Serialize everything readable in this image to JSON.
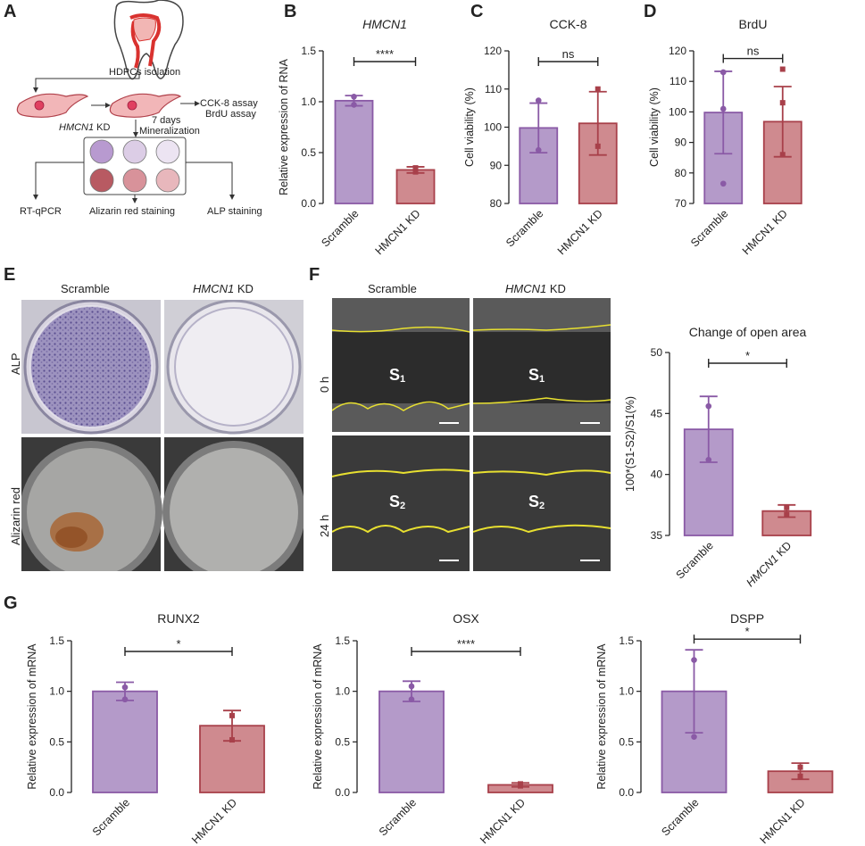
{
  "panels": {
    "A": "A",
    "B": "B",
    "C": "C",
    "D": "D",
    "E": "E",
    "F": "F",
    "G": "G"
  },
  "schematic": {
    "isolation": "HDPCs isolation",
    "kd_gene": "HMCN1",
    "kd_suffix": " KD",
    "days": "7 days",
    "mineralization": "Mineralization",
    "cck8": "CCK-8 assay",
    "brdu": "BrdU assay",
    "rtqpcr": "RT-qPCR",
    "alizarin": "Alizarin red staining",
    "alp": "ALP staining"
  },
  "panelE": {
    "col1": "Scramble",
    "col2_gene": "HMCN1",
    "col2_suffix": " KD",
    "row1": "ALP",
    "row2": "Alizarin red"
  },
  "panelF": {
    "col1": "Scramble",
    "col2_gene": "HMCN1",
    "col2_suffix": " KD",
    "row1": "0 h",
    "row2": "24 h",
    "s1": "S",
    "s1_sub": "1",
    "s2": "S",
    "s2_sub": "2"
  },
  "colors": {
    "purple_fill": "#b49ac9",
    "purple_edge": "#8a5aa6",
    "red_fill": "#cf8a8f",
    "red_edge": "#a8404a"
  },
  "chart_data": [
    {
      "id": "B",
      "type": "bar",
      "title": "HMCN1",
      "title_italic": true,
      "categories": [
        "Scramble",
        "HMCN1 KD"
      ],
      "values": [
        1.01,
        0.33
      ],
      "errors": [
        0.05,
        0.03
      ],
      "points": [
        [
          0.97,
          1.05
        ],
        [
          0.31,
          0.35
        ]
      ],
      "ylabel": "Relative expression of RNA",
      "ylim": [
        0,
        1.5
      ],
      "yticks": [
        0,
        0.5,
        1,
        1.5
      ],
      "yticklabels": [
        "0.0",
        "0.5",
        "1.0",
        "1.5"
      ],
      "sig": "****"
    },
    {
      "id": "C",
      "type": "bar",
      "title": "CCK-8",
      "title_italic": false,
      "categories": [
        "Scramble",
        "HMCN1 KD"
      ],
      "values": [
        99.8,
        101
      ],
      "errors": [
        6.5,
        8.3
      ],
      "points": [
        [
          94,
          107
        ],
        [
          95,
          110
        ]
      ],
      "ylabel": "Cell viability (%)",
      "ylim": [
        80,
        120
      ],
      "yticks": [
        80,
        90,
        100,
        110,
        120
      ],
      "yticklabels": [
        "80",
        "90",
        "100",
        "110",
        "120"
      ],
      "sig": "ns"
    },
    {
      "id": "D",
      "type": "bar",
      "title": "BrdU",
      "title_italic": false,
      "categories": [
        "Scramble",
        "HMCN1 KD"
      ],
      "values": [
        99.8,
        96.8
      ],
      "errors": [
        13.5,
        11.5
      ],
      "points": [
        [
          76.5,
          101,
          113
        ],
        [
          86,
          103,
          114
        ]
      ],
      "ylabel": "Cell viability (%)",
      "ylim": [
        70,
        120
      ],
      "yticks": [
        70,
        80,
        90,
        100,
        110,
        120
      ],
      "yticklabels": [
        "70",
        "80",
        "90",
        "100",
        "110",
        "120"
      ],
      "sig": "ns"
    },
    {
      "id": "F",
      "type": "bar",
      "title": "Change of open area",
      "title_italic": false,
      "categories": [
        "Scramble",
        "HMCN1 KD"
      ],
      "cat_italic_gene": true,
      "values": [
        43.7,
        37.0
      ],
      "errors": [
        2.7,
        0.5
      ],
      "points": [
        [
          41.2,
          45.6
        ],
        [
          36.7,
          37.3
        ]
      ],
      "ylabel": "100*(S1-S2)/S1(%)",
      "ylim": [
        35,
        50
      ],
      "yticks": [
        35,
        40,
        45,
        50
      ],
      "yticklabels": [
        "35",
        "40",
        "45",
        "50"
      ],
      "sig": "*"
    },
    {
      "id": "G1",
      "type": "bar",
      "title": "RUNX2",
      "title_italic": false,
      "categories": [
        "Scramble",
        "HMCN1 KD"
      ],
      "values": [
        1.0,
        0.66
      ],
      "errors": [
        0.09,
        0.15
      ],
      "points": [
        [
          0.92,
          1.04
        ],
        [
          0.52,
          0.76
        ]
      ],
      "ylabel": "Relative expression of mRNA",
      "ylim": [
        0,
        1.5
      ],
      "yticks": [
        0,
        0.5,
        1,
        1.5
      ],
      "yticklabels": [
        "0.0",
        "0.5",
        "1.0",
        "1.5"
      ],
      "sig": "*"
    },
    {
      "id": "G2",
      "type": "bar",
      "title": "OSX",
      "title_italic": false,
      "categories": [
        "Scramble",
        "HMCN1 KD"
      ],
      "values": [
        1.0,
        0.075
      ],
      "errors": [
        0.1,
        0.02
      ],
      "points": [
        [
          0.92,
          1.05
        ],
        [
          0.065,
          0.085
        ]
      ],
      "ylabel": "Relative expression of mRNA",
      "ylim": [
        0,
        1.5
      ],
      "yticks": [
        0,
        0.5,
        1,
        1.5
      ],
      "yticklabels": [
        "0.0",
        "0.5",
        "1.0",
        "1.5"
      ],
      "sig": "****"
    },
    {
      "id": "G3",
      "type": "bar",
      "title": "DSPP",
      "title_italic": false,
      "categories": [
        "Scramble",
        "HMCN1 KD"
      ],
      "values": [
        1.0,
        0.21
      ],
      "errors": [
        0.41,
        0.08
      ],
      "points": [
        [
          0.55,
          1.31
        ],
        [
          0.16,
          0.25
        ]
      ],
      "ylabel": "Relative expression of mRNA",
      "ylim": [
        0,
        1.5
      ],
      "yticks": [
        0,
        0.5,
        1,
        1.5
      ],
      "yticklabels": [
        "0.0",
        "0.5",
        "1.0",
        "1.5"
      ],
      "sig": "*"
    }
  ]
}
